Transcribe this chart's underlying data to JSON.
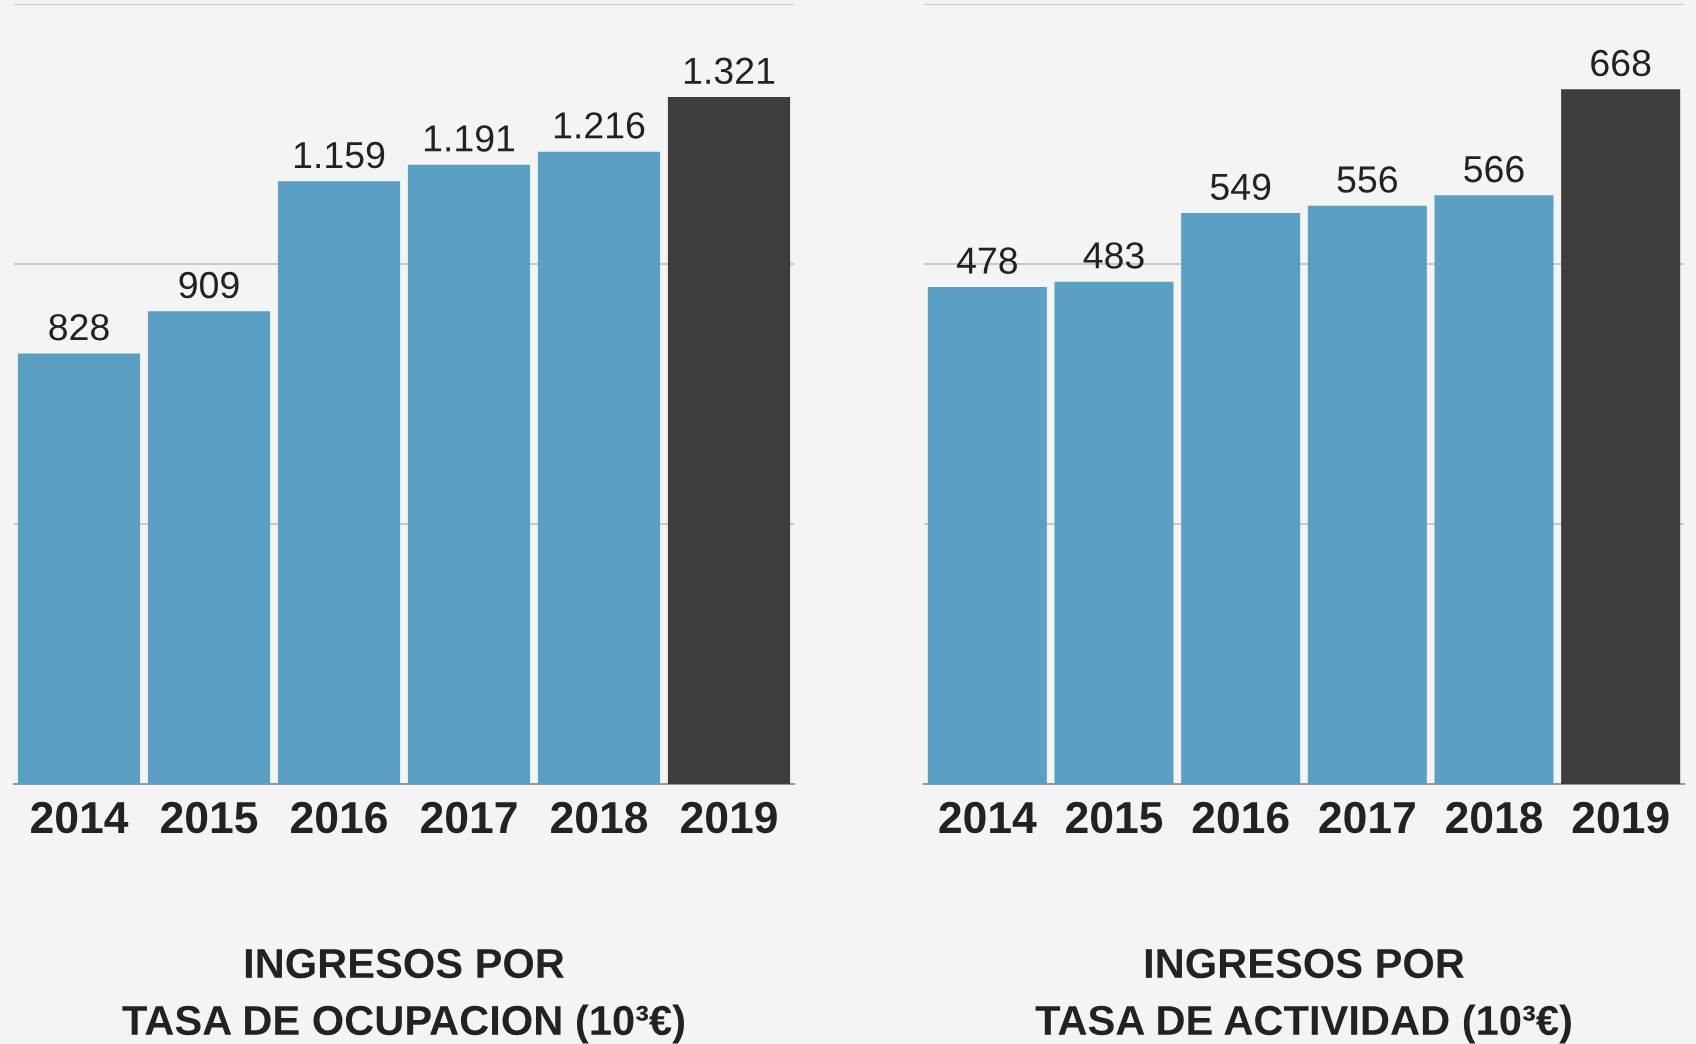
{
  "chart_data": [
    {
      "type": "bar",
      "xlabel": "INGRESOS POR\nTASA DE OCUPACION (10³€)",
      "categories": [
        "2014",
        "2015",
        "2016",
        "2017",
        "2018",
        "2019"
      ],
      "values": [
        828,
        909,
        1159,
        1191,
        1216,
        1321
      ],
      "value_labels": [
        "828",
        "909",
        "1.159",
        "1.191",
        "1.216",
        "1.321"
      ],
      "colors": [
        "#5b9fc4",
        "#5b9fc4",
        "#5b9fc4",
        "#5b9fc4",
        "#5b9fc4",
        "#3f3d3b"
      ],
      "ylim": [
        0,
        1500
      ],
      "yticks": [
        {
          "value": 500,
          "label": null
        },
        {
          "value": 1000,
          "label": null
        },
        {
          "value": 1500,
          "label": null
        }
      ],
      "grid": "y",
      "tick_labels": "x",
      "legend": false
    },
    {
      "type": "bar",
      "xlabel": "INGRESOS POR\nTASA DE ACTIVIDAD (10³€)",
      "categories": [
        "2014",
        "2015",
        "2016",
        "2017",
        "2018",
        "2019"
      ],
      "values": [
        478,
        483,
        549,
        556,
        566,
        668
      ],
      "value_labels": [
        "478",
        "483",
        "549",
        "556",
        "566",
        "668"
      ],
      "colors": [
        "#5b9fc4",
        "#5b9fc4",
        "#5b9fc4",
        "#5b9fc4",
        "#5b9fc4",
        "#3f3d3b"
      ],
      "ylim": [
        0,
        750
      ],
      "yticks": [
        {
          "value": 250,
          "label": null
        },
        {
          "value": 500,
          "label": null
        },
        {
          "value": 750,
          "label": null
        }
      ],
      "grid": "y",
      "tick_labels": "x",
      "legend": false
    }
  ]
}
